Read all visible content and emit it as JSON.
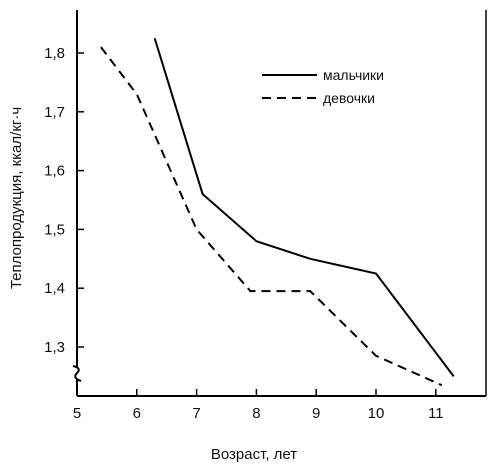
{
  "chart_data": {
    "type": "line",
    "xlabel": "Возраст, лет",
    "ylabel": "Теплопродукция, ккал/кг·ч",
    "xlim": [
      5,
      11.5
    ],
    "ylim": [
      1.25,
      1.85
    ],
    "x_ticks": [
      5,
      6,
      7,
      8,
      9,
      10,
      11
    ],
    "x_tick_labels": [
      "5",
      "6",
      "7",
      "8",
      "9",
      "10",
      "11"
    ],
    "y_ticks": [
      1.3,
      1.4,
      1.5,
      1.6,
      1.7,
      1.8
    ],
    "y_tick_labels": [
      "1,3",
      "1,4",
      "1,5",
      "1,6",
      "1,7",
      "1,8"
    ],
    "y_axis_break": true,
    "grid": false,
    "legend_position": "top-right",
    "series": [
      {
        "name": "мальчики",
        "style": "solid",
        "color": "#000000",
        "x": [
          6.3,
          7.1,
          8.0,
          8.9,
          10.0,
          11.3
        ],
        "y": [
          1.825,
          1.56,
          1.48,
          1.45,
          1.425,
          1.25
        ]
      },
      {
        "name": "девочки",
        "style": "dashed",
        "color": "#000000",
        "x": [
          5.4,
          6.0,
          7.0,
          7.9,
          8.9,
          10.0,
          11.1
        ],
        "y": [
          1.81,
          1.73,
          1.5,
          1.395,
          1.395,
          1.285,
          1.235
        ]
      }
    ]
  }
}
